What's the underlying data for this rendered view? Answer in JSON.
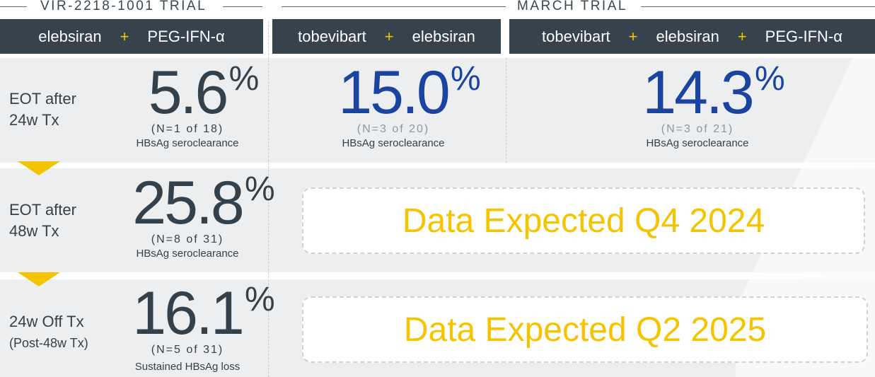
{
  "trials": {
    "left": "VIR-2218-1001 TRIAL",
    "right": "MARCH TRIAL"
  },
  "columns": [
    {
      "drugs": [
        "elebsiran",
        "PEG-IFN-α"
      ]
    },
    {
      "drugs": [
        "tobevibart",
        "elebsiran"
      ]
    },
    {
      "drugs": [
        "tobevibart",
        "elebsiran",
        "PEG-IFN-α"
      ]
    }
  ],
  "plus": "+",
  "rows": [
    {
      "label1": "EOT after",
      "label2": "24w Tx"
    },
    {
      "label1": "EOT after",
      "label2": "48w Tx"
    },
    {
      "label1": "24w Off Tx",
      "label2": "(Post-48w Tx)"
    }
  ],
  "results": {
    "r1c1": {
      "value": "5.6",
      "pct": "%",
      "n": "(N=1 of 18)",
      "label": "HBsAg seroclearance"
    },
    "r1c2": {
      "value": "15.0",
      "pct": "%",
      "n": "(N=3 of 20)",
      "label": "HBsAg seroclearance"
    },
    "r1c3": {
      "value": "14.3",
      "pct": "%",
      "n": "(N=3 of 21)",
      "label": "HBsAg seroclearance"
    },
    "r2c1": {
      "value": "25.8",
      "pct": "%",
      "n": "(N=8 of 31)",
      "label": "HBsAg seroclearance"
    },
    "r3c1": {
      "value": "16.1",
      "pct": "%",
      "n": "(N=5 of 31)",
      "label": "Sustained HBsAg loss"
    }
  },
  "pending": {
    "row2": "Data Expected Q4 2024",
    "row3": "Data Expected Q2 2025"
  },
  "colors": {
    "header": "#36434d",
    "accent": "#f5c400",
    "highlight": "#1a449f",
    "row_bg": "#eceef0"
  }
}
